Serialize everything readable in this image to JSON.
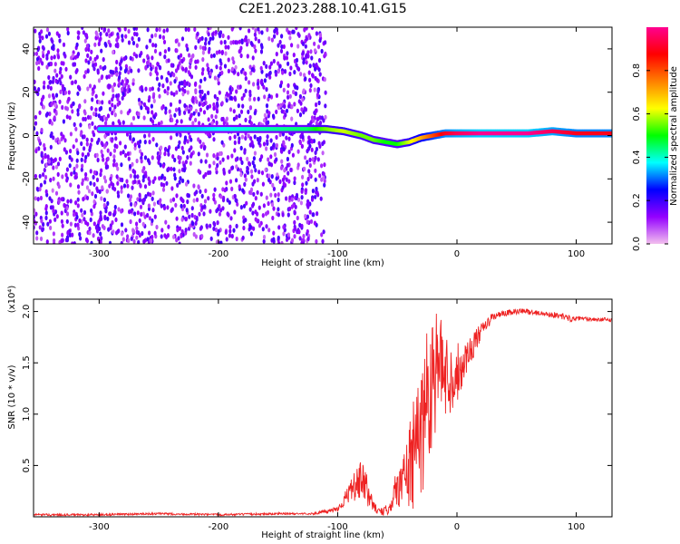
{
  "page_title": "C2E1.2023.288.10.41.G15",
  "chart_data": [
    {
      "type": "heatmap",
      "xlabel": "Height of straight line (km)",
      "ylabel": "Frequency (Hz)",
      "xlim": [
        -355,
        130
      ],
      "ylim": [
        -50,
        50
      ],
      "x_ticks": [
        -300,
        -200,
        -100,
        0,
        100
      ],
      "y_ticks": [
        40,
        20,
        0,
        -20,
        -40
      ],
      "colorbar": {
        "label": "Normalized spectral amplitude",
        "range": [
          0.0,
          1.0
        ],
        "ticks": [
          0.0,
          0.2,
          0.4,
          0.6,
          0.8
        ],
        "colormap": [
          "#f3c0ee",
          "#9400ff",
          "#0000ff",
          "#00ffff",
          "#00ff00",
          "#ffff00",
          "#ff8000",
          "#ff0000",
          "#ff0090"
        ]
      },
      "noise_region": [
        -355,
        -125
      ],
      "signal_ridge": {
        "x": [
          -300,
          -220,
          -125,
          -110,
          -95,
          -80,
          -70,
          -60,
          -50,
          -40,
          -30,
          -20,
          -10,
          0,
          20,
          40,
          60,
          80,
          100,
          130
        ],
        "frequency": [
          3,
          3,
          3,
          3,
          2,
          0,
          -2,
          -3,
          -4,
          -3,
          -1,
          0,
          1,
          1,
          1,
          1,
          1,
          2,
          1,
          1
        ],
        "amplitude": [
          0.35,
          0.35,
          0.45,
          0.55,
          0.6,
          0.55,
          0.55,
          0.5,
          0.5,
          0.6,
          0.7,
          0.8,
          0.9,
          0.95,
          1.0,
          1.0,
          1.0,
          0.95,
          0.9,
          0.9
        ]
      },
      "grid": false
    },
    {
      "type": "line",
      "xlabel": "Height of straight line (km)",
      "ylabel": "SNR (10 * v/v)",
      "y_multiplier": "(x10⁴)",
      "xlim": [
        -355,
        130
      ],
      "ylim": [
        0,
        2.12
      ],
      "x_ticks": [
        -300,
        -200,
        -100,
        0,
        100
      ],
      "y_ticks": [
        0.5,
        1.0,
        1.5,
        2.0
      ],
      "color": "#ee2222",
      "grid": false,
      "series": [
        {
          "x": [
            -355,
            -300,
            -250,
            -200,
            -150,
            -120,
            -110,
            -100,
            -95,
            -90,
            -85,
            -80,
            -75,
            -70,
            -65,
            -60,
            -55,
            -50,
            -45,
            -40,
            -35,
            -30,
            -25,
            -20,
            -15,
            -10,
            -5,
            0,
            10,
            20,
            30,
            40,
            50,
            60,
            70,
            80,
            90,
            95,
            100,
            110,
            120,
            130
          ],
          "y": [
            0.02,
            0.02,
            0.03,
            0.02,
            0.03,
            0.03,
            0.05,
            0.08,
            0.15,
            0.25,
            0.3,
            0.35,
            0.25,
            0.1,
            0.05,
            0.05,
            0.15,
            0.3,
            0.35,
            0.5,
            0.6,
            0.9,
            1.2,
            1.4,
            1.5,
            1.4,
            1.35,
            1.4,
            1.6,
            1.8,
            1.95,
            1.98,
            2.0,
            2.0,
            1.98,
            1.97,
            1.95,
            1.93,
            1.93,
            1.93,
            1.92,
            1.92
          ],
          "spread": [
            0.01,
            0.01,
            0.01,
            0.01,
            0.01,
            0.01,
            0.02,
            0.03,
            0.06,
            0.1,
            0.15,
            0.2,
            0.15,
            0.05,
            0.03,
            0.05,
            0.1,
            0.2,
            0.3,
            0.45,
            0.6,
            0.8,
            0.7,
            0.7,
            0.5,
            0.4,
            0.35,
            0.3,
            0.15,
            0.08,
            0.04,
            0.03,
            0.03,
            0.03,
            0.02,
            0.03,
            0.03,
            0.03,
            0.02,
            0.02,
            0.02,
            0.02
          ]
        }
      ]
    }
  ]
}
